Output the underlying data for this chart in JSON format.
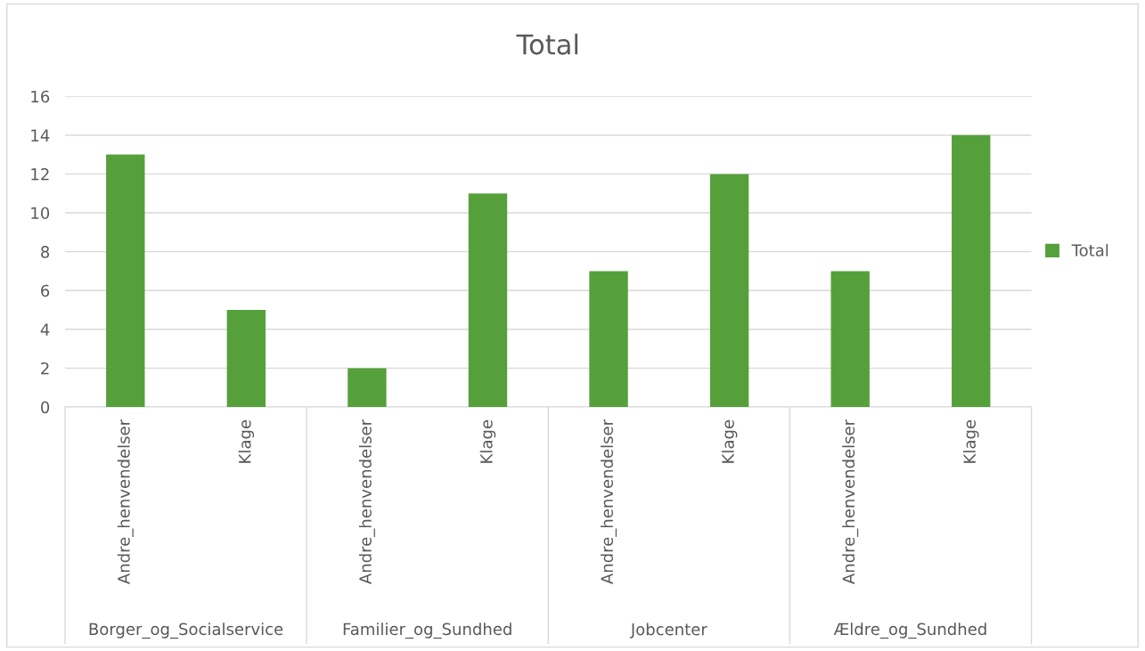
{
  "chart_data": {
    "type": "bar",
    "title": "Total",
    "categories": [
      "Andre_henvendelser",
      "Klage",
      "Andre_henvendelser",
      "Klage",
      "Andre_henvendelser",
      "Klage",
      "Andre_henvendelser",
      "Klage"
    ],
    "series": [
      {
        "name": "Total",
        "color": "#55a03b",
        "values": [
          13,
          5,
          2,
          11,
          7,
          12,
          7,
          14
        ]
      }
    ],
    "annotations": [
      "Borger_og_Socialservice",
      "Familier_og_Sundhed",
      "Jobcenter",
      "Ældre_og_Sundhed"
    ],
    "ylim": [
      0,
      16
    ],
    "yticks": [
      0,
      2,
      4,
      6,
      8,
      10,
      12,
      14,
      16
    ],
    "grid": "y",
    "legend": "right"
  }
}
